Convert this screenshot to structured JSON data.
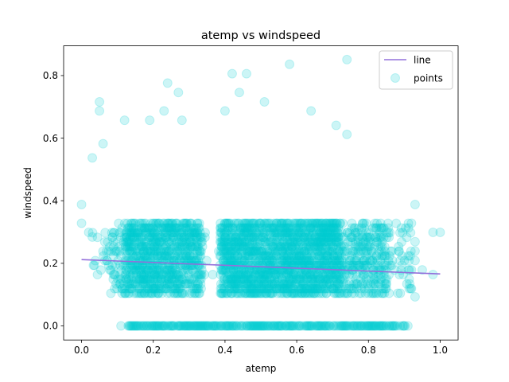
{
  "chart_data": {
    "type": "scatter",
    "title": "atemp vs windspeed",
    "xlabel": "atemp",
    "ylabel": "windspeed",
    "xlim": [
      -0.05,
      1.05
    ],
    "ylim": [
      -0.045,
      0.895
    ],
    "xticks": [
      0.0,
      0.2,
      0.4,
      0.6,
      0.8,
      1.0
    ],
    "yticks": [
      0.0,
      0.2,
      0.4,
      0.6,
      0.8
    ],
    "xtick_labels": [
      "0.0",
      "0.2",
      "0.4",
      "0.6",
      "0.8",
      "1.0"
    ],
    "ytick_labels": [
      "0.0",
      "0.2",
      "0.4",
      "0.6",
      "0.8"
    ],
    "legend_position": "top-right",
    "grid": false,
    "series": [
      {
        "name": "line",
        "kind": "line",
        "color": "#9370db",
        "x": [
          0.0,
          1.0
        ],
        "y": [
          0.212,
          0.166
        ]
      },
      {
        "name": "points",
        "kind": "scatter",
        "color": "#00ced1",
        "alpha": 0.2,
        "notable_points": [
          {
            "x": 0.74,
            "y": 0.851
          },
          {
            "x": 0.58,
            "y": 0.836
          },
          {
            "x": 0.42,
            "y": 0.806
          },
          {
            "x": 0.46,
            "y": 0.806
          },
          {
            "x": 0.24,
            "y": 0.776
          },
          {
            "x": 0.27,
            "y": 0.746
          },
          {
            "x": 0.44,
            "y": 0.746
          },
          {
            "x": 0.05,
            "y": 0.716
          },
          {
            "x": 0.05,
            "y": 0.687
          },
          {
            "x": 0.23,
            "y": 0.687
          },
          {
            "x": 0.4,
            "y": 0.687
          },
          {
            "x": 0.64,
            "y": 0.687
          },
          {
            "x": 0.51,
            "y": 0.716
          },
          {
            "x": 0.12,
            "y": 0.657
          },
          {
            "x": 0.19,
            "y": 0.657
          },
          {
            "x": 0.28,
            "y": 0.657
          },
          {
            "x": 0.71,
            "y": 0.641
          },
          {
            "x": 0.74,
            "y": 0.612
          },
          {
            "x": 0.06,
            "y": 0.582
          },
          {
            "x": 0.03,
            "y": 0.537
          },
          {
            "x": 0.0,
            "y": 0.388
          },
          {
            "x": 0.0,
            "y": 0.328
          },
          {
            "x": 0.02,
            "y": 0.299
          },
          {
            "x": 0.03,
            "y": 0.284
          },
          {
            "x": 0.93,
            "y": 0.388
          },
          {
            "x": 0.92,
            "y": 0.328
          },
          {
            "x": 0.93,
            "y": 0.269
          },
          {
            "x": 0.93,
            "y": 0.239
          },
          {
            "x": 0.93,
            "y": 0.209
          },
          {
            "x": 0.98,
            "y": 0.299
          },
          {
            "x": 1.0,
            "y": 0.299
          },
          {
            "x": 0.92,
            "y": 0.179
          },
          {
            "x": 0.95,
            "y": 0.179
          },
          {
            "x": 0.98,
            "y": 0.164
          },
          {
            "x": 0.93,
            "y": 0.093
          },
          {
            "x": 0.11,
            "y": 0.0
          },
          {
            "x": 0.91,
            "y": 0.0
          }
        ]
      }
    ]
  }
}
